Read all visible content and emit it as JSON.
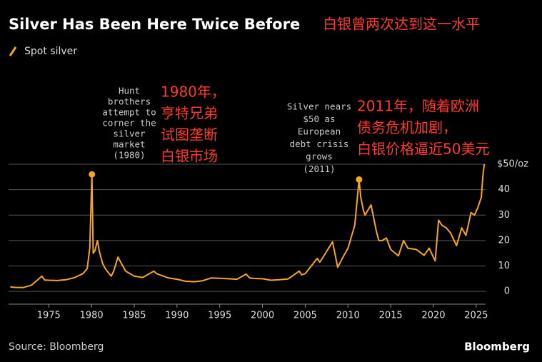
{
  "chart_data": {
    "type": "line",
    "title": "Silver Has Been Here Twice Before",
    "title_note": "白银曾两次达到这一水平",
    "series": [
      {
        "name": "Spot silver",
        "color": "#f5a623",
        "x": [
          1970.5,
          1971,
          1972,
          1973,
          1974.2,
          1974.5,
          1975,
          1976,
          1977,
          1978,
          1979,
          1979.5,
          1979.8,
          1980.05,
          1980.2,
          1980.4,
          1980.7,
          1980.9,
          1981.3,
          1981.6,
          1982.3,
          1982.6,
          1983.1,
          1983.5,
          1984,
          1985,
          1986,
          1987.3,
          1987.6,
          1988,
          1989,
          1990,
          1991,
          1992,
          1993,
          1994,
          1995,
          1996,
          1997,
          1998.1,
          1998.5,
          1999,
          2000,
          2001,
          2002,
          2003,
          2004.3,
          2004.6,
          2005,
          2006.4,
          2006.7,
          2007,
          2008.2,
          2008.8,
          2009.5,
          2010,
          2010.8,
          2011.3,
          2011.5,
          2011.8,
          2012,
          2012.7,
          2013.3,
          2013.6,
          2014,
          2014.5,
          2015,
          2015.9,
          2016.5,
          2017,
          2018,
          2018.9,
          2019.5,
          2020.2,
          2020.6,
          2021,
          2021.5,
          2022,
          2022.7,
          2023.3,
          2023.8,
          2024.4,
          2024.8,
          2025.2,
          2025.6,
          2025.8,
          2025.95
        ],
        "values": [
          1.8,
          1.6,
          1.5,
          2.5,
          6,
          4.5,
          4.4,
          4.3,
          4.6,
          5.4,
          7,
          9,
          17,
          46,
          15,
          16,
          20,
          16,
          11,
          9,
          6,
          8,
          13.5,
          11,
          8,
          6,
          5.5,
          8,
          7,
          6.5,
          5.3,
          4.8,
          4,
          3.8,
          4.2,
          5.3,
          5.2,
          5,
          4.8,
          6.8,
          5.3,
          5.1,
          5,
          4.4,
          4.6,
          4.9,
          8,
          6.5,
          7,
          13,
          11.5,
          13,
          19.5,
          9.5,
          14,
          17,
          26,
          44,
          37,
          32,
          30,
          34,
          24,
          20,
          20,
          21,
          16.5,
          14,
          20,
          17,
          16.5,
          14.2,
          17,
          12,
          28,
          26,
          25,
          23,
          18,
          25,
          22,
          31,
          30,
          33,
          37,
          46,
          50
        ]
      }
    ],
    "highlights": {
      "x": [
        1980.05,
        2011.3
      ],
      "values": [
        46,
        44
      ]
    },
    "xlim": [
      1970.3,
      2026.1
    ],
    "xticks": [
      1975,
      1980,
      1985,
      1990,
      1995,
      2000,
      2005,
      2010,
      2015,
      2020,
      2025
    ],
    "ylim": [
      -5,
      50
    ],
    "yticks": [
      0,
      10,
      20,
      30,
      40,
      {
        "value": 50,
        "label": "$50/oz"
      }
    ],
    "grid": true,
    "annotations": [
      {
        "lines": [
          "Hunt",
          "brothers",
          "attempt to",
          "corner the",
          "silver",
          "market",
          "(1980)"
        ]
      },
      {
        "lines": [
          "Silver nears",
          "$50 as",
          "European",
          "debt crisis",
          "grows",
          "(2011)"
        ]
      }
    ],
    "notes": [
      {
        "lines": [
          "1980年，",
          "亨特兄弟",
          "试图垄断",
          "白银市场"
        ]
      },
      {
        "lines": [
          "2011年，随着欧洲",
          "债务危机加剧，",
          "白银价格逼近50美元"
        ]
      }
    ],
    "source": "Source: Bloomberg",
    "brand": "Bloomberg"
  }
}
